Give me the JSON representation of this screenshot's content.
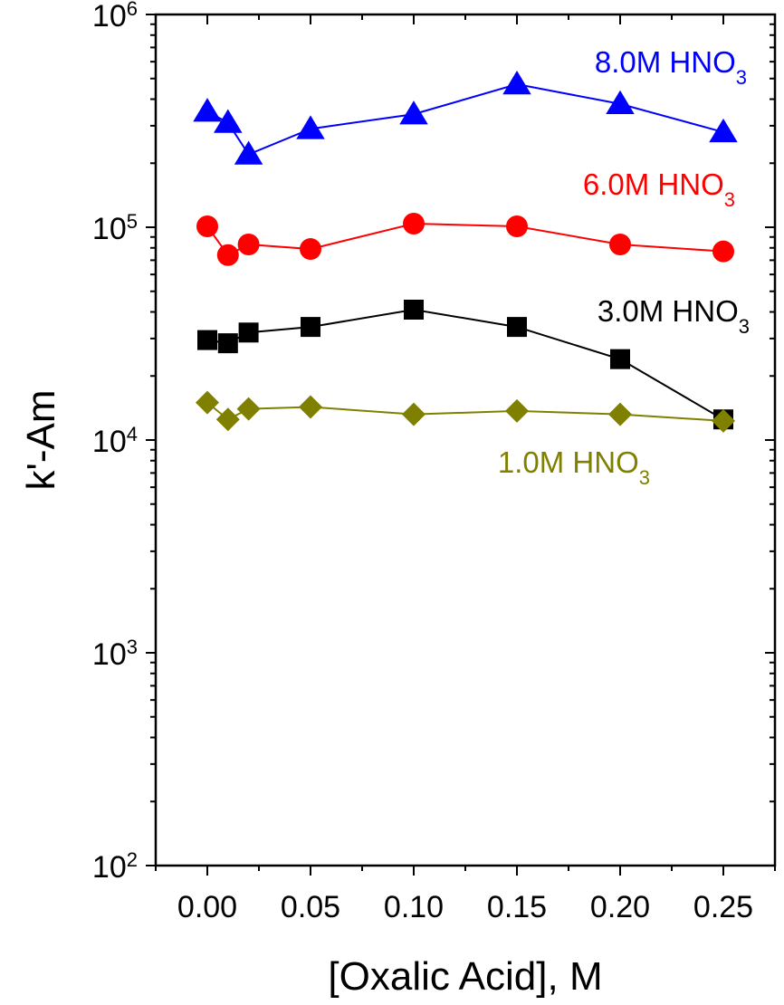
{
  "chart_data": {
    "type": "scatter",
    "title": "",
    "xlabel": "[Oxalic Acid], M",
    "ylabel": "k'-Am",
    "xlim": [
      -0.025,
      0.275
    ],
    "ylim": [
      100,
      1000000
    ],
    "yscale": "log",
    "grid": false,
    "legend": "none",
    "x_ticks": [
      "0.00",
      "0.05",
      "0.10",
      "0.15",
      "0.20",
      "0.25"
    ],
    "y_ticks": [
      {
        "base": "10",
        "exp": "2"
      },
      {
        "base": "10",
        "exp": "3"
      },
      {
        "base": "10",
        "exp": "4"
      },
      {
        "base": "10",
        "exp": "5"
      },
      {
        "base": "10",
        "exp": "6"
      }
    ],
    "x": [
      0.0,
      0.01,
      0.02,
      0.05,
      0.1,
      0.15,
      0.2,
      0.25
    ],
    "series": [
      {
        "label_main": "8.0M HNO",
        "label_sub": "3",
        "color": "#0000ff",
        "marker": "triangle",
        "values": [
          350000,
          310000,
          220000,
          290000,
          340000,
          470000,
          380000,
          280000
        ]
      },
      {
        "label_main": "6.0M HNO",
        "label_sub": "3",
        "color": "#ff0000",
        "marker": "circle",
        "values": [
          101000,
          74000,
          83000,
          79000,
          104000,
          101000,
          83000,
          77000
        ]
      },
      {
        "label_main": "3.0M HNO",
        "label_sub": "3",
        "color": "#000000",
        "marker": "square",
        "values": [
          29500,
          28500,
          32000,
          34000,
          41000,
          34000,
          24000,
          12500
        ]
      },
      {
        "label_main": "1.0M HNO",
        "label_sub": "3",
        "color": "#808000",
        "marker": "diamond",
        "values": [
          15000,
          12500,
          14000,
          14300,
          13200,
          13700,
          13200,
          12300
        ]
      }
    ]
  }
}
